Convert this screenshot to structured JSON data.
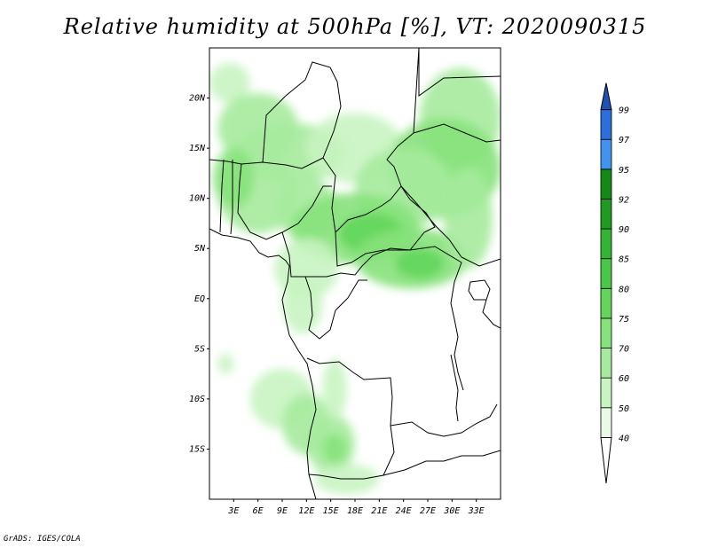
{
  "title": "Relative humidity at 500hPa [%], VT: 2020090315",
  "credit": "GrADS: IGES/COLA",
  "map": {
    "lon_range": [
      0,
      36
    ],
    "lat_range": [
      -20,
      25
    ],
    "lat_ticks": [
      {
        "v": 20,
        "label": "20N"
      },
      {
        "v": 15,
        "label": "15N"
      },
      {
        "v": 10,
        "label": "10N"
      },
      {
        "v": 5,
        "label": "5N"
      },
      {
        "v": 0,
        "label": "EQ"
      },
      {
        "v": -5,
        "label": "5S"
      },
      {
        "v": -10,
        "label": "10S"
      },
      {
        "v": -15,
        "label": "15S"
      }
    ],
    "lon_ticks": [
      {
        "v": 3,
        "label": "3E"
      },
      {
        "v": 6,
        "label": "6E"
      },
      {
        "v": 9,
        "label": "9E"
      },
      {
        "v": 12,
        "label": "12E"
      },
      {
        "v": 15,
        "label": "15E"
      },
      {
        "v": 18,
        "label": "18E"
      },
      {
        "v": 21,
        "label": "21E"
      },
      {
        "v": 24,
        "label": "24E"
      },
      {
        "v": 27,
        "label": "27E"
      },
      {
        "v": 30,
        "label": "30E"
      },
      {
        "v": 33,
        "label": "33E"
      }
    ]
  },
  "colorbar": {
    "levels": [
      "40",
      "50",
      "60",
      "70",
      "75",
      "80",
      "85",
      "90",
      "92",
      "95",
      "97",
      "99"
    ],
    "colors": [
      "#ffffff",
      "#e9fbe6",
      "#c8f4c1",
      "#a6eb9d",
      "#86e27a",
      "#63d65a",
      "#48c845",
      "#33b534",
      "#1f9b22",
      "#128a15",
      "#4292f0",
      "#2a6fdc",
      "#1f52b5"
    ]
  },
  "humid_areas": [
    {
      "lon": 2.5,
      "lat": 21.5,
      "rx": 2.5,
      "ry": 2,
      "level": 2
    },
    {
      "lon": 6,
      "lat": 17,
      "rx": 5,
      "ry": 3.5,
      "level": 3
    },
    {
      "lon": 10,
      "lat": 14.5,
      "rx": 7,
      "ry": 3,
      "level": 3
    },
    {
      "lon": 18,
      "lat": 15,
      "rx": 6,
      "ry": 3.5,
      "level": 2
    },
    {
      "lon": 31,
      "lat": 18,
      "rx": 5,
      "ry": 5,
      "level": 3
    },
    {
      "lon": 29,
      "lat": 13,
      "rx": 7,
      "ry": 5,
      "level": 4
    },
    {
      "lon": 24,
      "lat": 11,
      "rx": 6,
      "ry": 4,
      "level": 3
    },
    {
      "lon": 6,
      "lat": 10.5,
      "rx": 5,
      "ry": 4,
      "level": 3
    },
    {
      "lon": 3,
      "lat": 12,
      "rx": 2.5,
      "ry": 3,
      "level": 4
    },
    {
      "lon": 12,
      "lat": 9,
      "rx": 4,
      "ry": 3,
      "level": 3
    },
    {
      "lon": 18,
      "lat": 7,
      "rx": 8,
      "ry": 3.5,
      "level": 4
    },
    {
      "lon": 20,
      "lat": 6.5,
      "rx": 4,
      "ry": 2,
      "level": 5
    },
    {
      "lon": 25,
      "lat": 4,
      "rx": 7,
      "ry": 3,
      "level": 4
    },
    {
      "lon": 26,
      "lat": 3.5,
      "rx": 3,
      "ry": 1.5,
      "level": 5
    },
    {
      "lon": 12,
      "lat": 3,
      "rx": 4,
      "ry": 3,
      "level": 2
    },
    {
      "lon": 11.5,
      "lat": -0.5,
      "rx": 2.5,
      "ry": 3,
      "level": 2
    },
    {
      "lon": 32,
      "lat": 8,
      "rx": 3,
      "ry": 5,
      "level": 3
    },
    {
      "lon": 9,
      "lat": -10,
      "rx": 4,
      "ry": 3,
      "level": 2
    },
    {
      "lon": 12,
      "lat": -12.5,
      "rx": 3,
      "ry": 3,
      "level": 3
    },
    {
      "lon": 15,
      "lat": -14.5,
      "rx": 3,
      "ry": 3,
      "level": 3
    },
    {
      "lon": 15.5,
      "lat": -15,
      "rx": 1.5,
      "ry": 1.5,
      "level": 4
    },
    {
      "lon": 17,
      "lat": -18,
      "rx": 4,
      "ry": 1.5,
      "level": 2
    },
    {
      "lon": 15.5,
      "lat": -9,
      "rx": 1.5,
      "ry": 3,
      "level": 2
    },
    {
      "lon": 2,
      "lat": -6.5,
      "rx": 1,
      "ry": 1,
      "level": 2
    }
  ]
}
